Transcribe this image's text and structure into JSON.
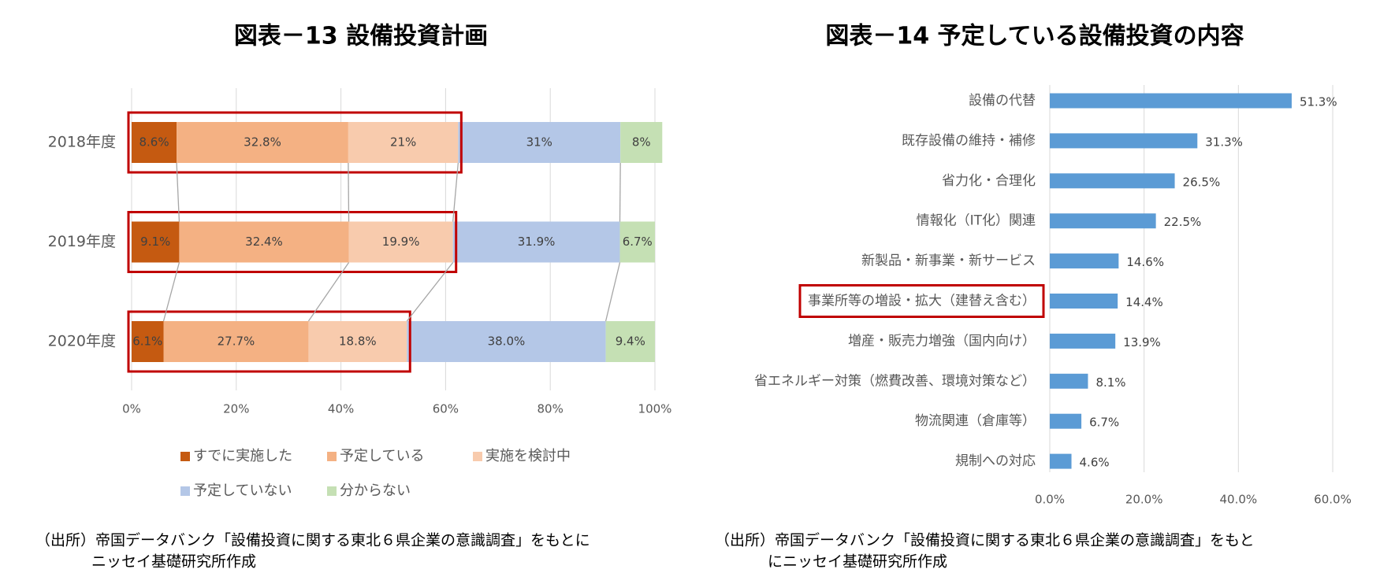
{
  "chart_data": [
    {
      "type": "stacked_bar",
      "orientation": "horizontal",
      "title": "図表－13 設備投資計画",
      "categories": [
        "2018年度",
        "2019年度",
        "2020年度"
      ],
      "series": [
        {
          "name": "すでに実施した",
          "color": "#c55a11",
          "values": [
            8.6,
            9.1,
            6.1
          ],
          "value_labels": [
            "8.6%",
            "9.1%",
            "6.1%"
          ]
        },
        {
          "name": "予定している",
          "color": "#f4b183",
          "values": [
            32.8,
            32.4,
            27.7
          ],
          "value_labels": [
            "32.8%",
            "32.4%",
            "27.7%"
          ]
        },
        {
          "name": "実施を検討中",
          "color": "#f8cbad",
          "values": [
            21,
            19.9,
            18.8
          ],
          "value_labels": [
            "21%",
            "19.9%",
            "18.8%"
          ]
        },
        {
          "name": "予定していない",
          "color": "#b4c7e7",
          "values": [
            31,
            31.9,
            38.0
          ],
          "value_labels": [
            "31%",
            "31.9%",
            "38.0%"
          ]
        },
        {
          "name": "分からない",
          "color": "#c5e0b4",
          "values": [
            8,
            6.7,
            9.4
          ],
          "value_labels": [
            "8%",
            "6.7%",
            "9.4%"
          ]
        }
      ],
      "xlim": [
        0,
        100
      ],
      "xticks": [
        {
          "value": 0,
          "label": "0%"
        },
        {
          "value": 20,
          "label": "20%"
        },
        {
          "value": 40,
          "label": "40%"
        },
        {
          "value": 60,
          "label": "60%"
        },
        {
          "value": 80,
          "label": "80%"
        },
        {
          "value": 100,
          "label": "100%"
        }
      ],
      "grid": true,
      "source": [
        "（出所）帝国データバンク「設備投資に関する東北６県企業の意識調査」をもとに",
        "ニッセイ基礎研究所作成"
      ]
    },
    {
      "type": "bar",
      "orientation": "horizontal",
      "title": "図表－14 予定している設備投資の内容",
      "categories": [
        "設備の代替",
        "既存設備の維持・補修",
        "省力化・合理化",
        "情報化（IT化）関連",
        "新製品・新事業・新サービス",
        "事業所等の増設・拡大（建替え含む）",
        "増産・販売力増強（国内向け）",
        "省エネルギー対策（燃費改善、環境対策など）",
        "物流関連（倉庫等）",
        "規制への対応"
      ],
      "values": [
        51.3,
        31.3,
        26.5,
        22.5,
        14.6,
        14.4,
        13.9,
        8.1,
        6.7,
        4.6
      ],
      "value_labels": [
        "51.3%",
        "31.3%",
        "26.5%",
        "22.5%",
        "14.6%",
        "14.4%",
        "13.9%",
        "8.1%",
        "6.7%",
        "4.6%"
      ],
      "color": "#5b9bd5",
      "xlim": [
        0,
        60
      ],
      "xticks": [
        {
          "value": 0,
          "label": "0.0%"
        },
        {
          "value": 20,
          "label": "20.0%"
        },
        {
          "value": 40,
          "label": "40.0%"
        },
        {
          "value": 60,
          "label": "60.0%"
        }
      ],
      "grid": true,
      "source": [
        "（出所）帝国データバンク「設備投資に関する東北６県企業の意識調査」をもと",
        "にニッセイ基礎研究所作成"
      ]
    }
  ]
}
